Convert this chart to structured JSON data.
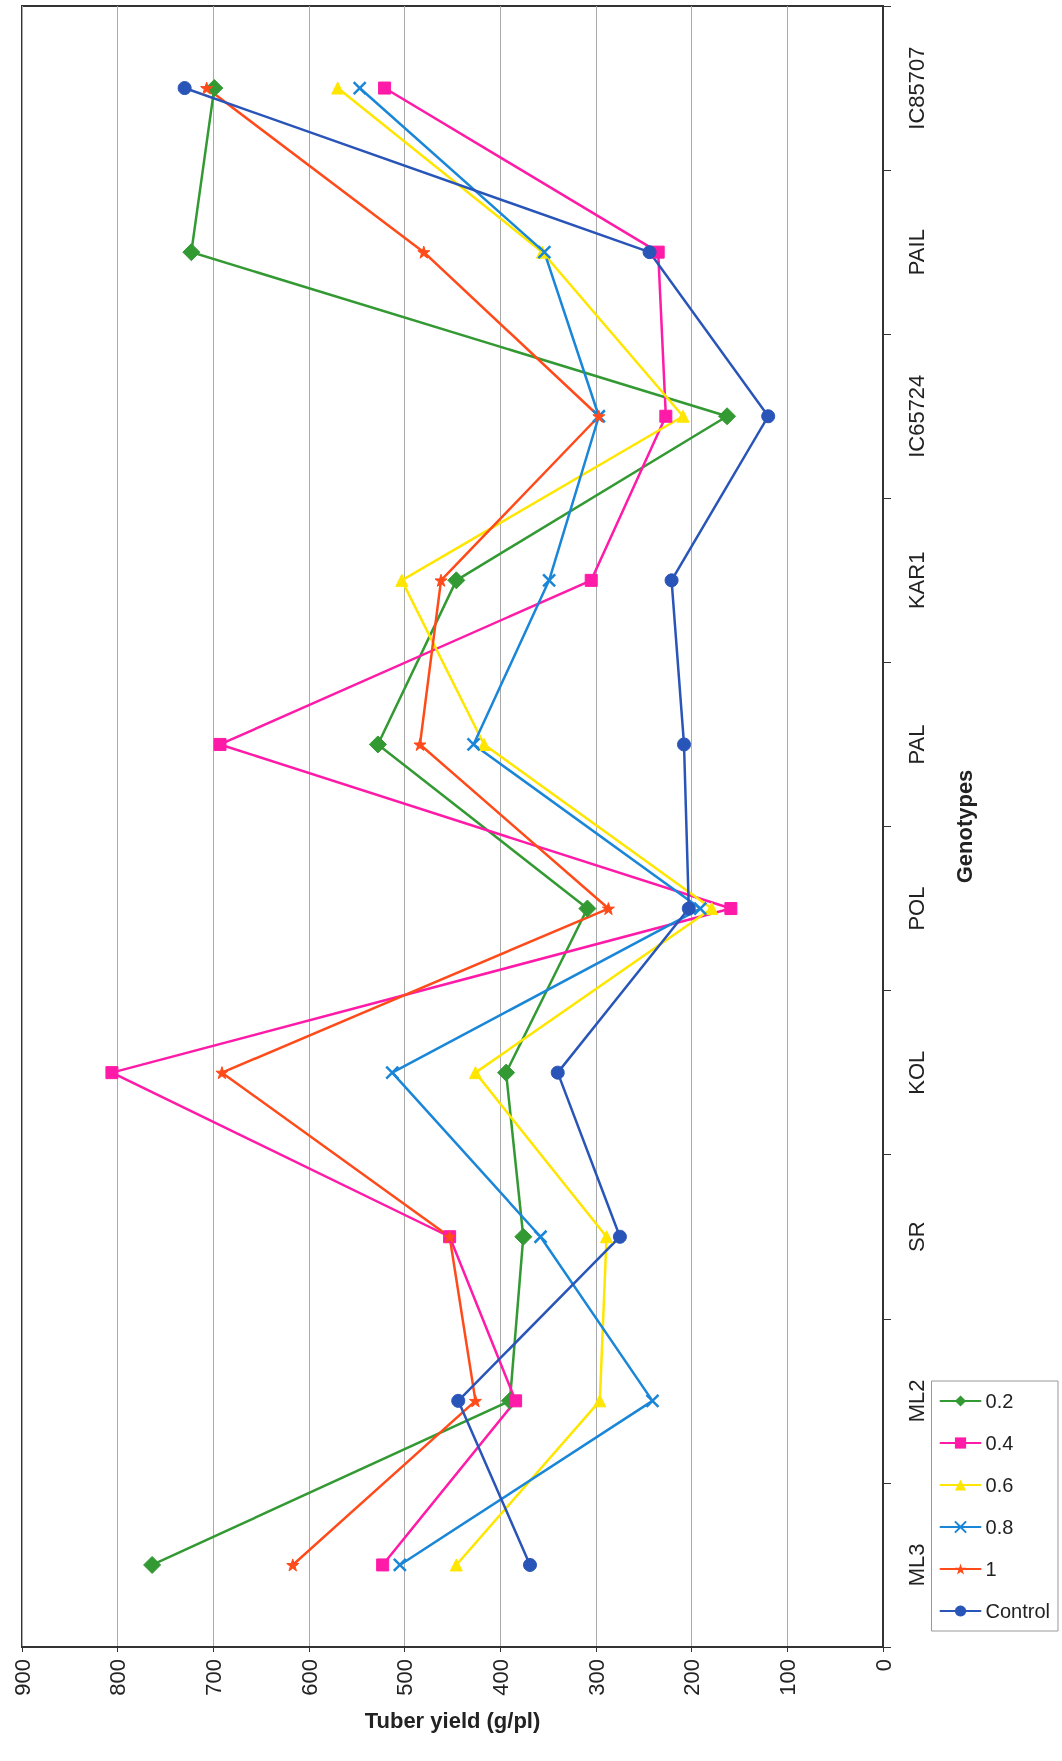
{
  "chart_data": {
    "type": "line",
    "orientation": "horizontal",
    "xlabel": "Tuber yield (g/pl)",
    "ylabel": "Genotypes",
    "categories": [
      "IC85707",
      "PAIL",
      "IC65724",
      "KAR1",
      "PAL",
      "POL",
      "KOL",
      "SR",
      "ML2",
      "ML3"
    ],
    "series": [
      {
        "name": "0.2",
        "color": "#339933",
        "marker": "diamond",
        "values": [
          699,
          723,
          163,
          446,
          528,
          309,
          394,
          376,
          390,
          764
        ]
      },
      {
        "name": "0.4",
        "color": "#ff1aa8",
        "marker": "square",
        "values": [
          521,
          235,
          227,
          305,
          693,
          159,
          806,
          453,
          384,
          523
        ]
      },
      {
        "name": "0.6",
        "color": "#ffe600",
        "marker": "triangle",
        "values": [
          570,
          356,
          209,
          503,
          417,
          179,
          426,
          289,
          296,
          446
        ]
      },
      {
        "name": "0.8",
        "color": "#1a86d8",
        "marker": "cross",
        "values": [
          547,
          354,
          297,
          349,
          428,
          191,
          513,
          358,
          241,
          505
        ]
      },
      {
        "name": "1",
        "color": "#ff4a1a",
        "marker": "star",
        "values": [
          707,
          480,
          297,
          462,
          484,
          287,
          691,
          453,
          426,
          617
        ]
      },
      {
        "name": "Control",
        "color": "#2a55b8",
        "marker": "circle",
        "values": [
          730,
          244,
          120,
          221,
          208,
          203,
          340,
          275,
          444,
          369
        ]
      }
    ],
    "xlim": [
      900,
      0
    ],
    "xticks": [
      0,
      100,
      200,
      300,
      400,
      500,
      600,
      700,
      800,
      900
    ],
    "grid": "x",
    "legend": "bottom right"
  }
}
